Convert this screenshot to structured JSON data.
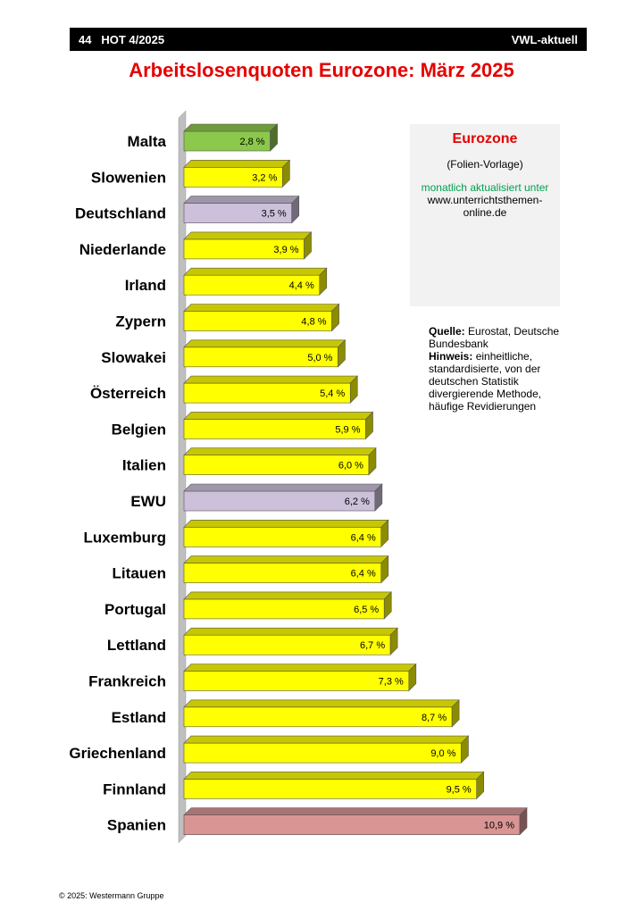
{
  "header": {
    "page_number": "44",
    "issue": "HOT 4/2025",
    "section": "VWL-aktuell"
  },
  "chart_data": {
    "type": "bar",
    "orientation": "horizontal",
    "title": "Arbeitslosenquoten Eurozone: März 2025",
    "categories": [
      "Malta",
      "Slowenien",
      "Deutschland",
      "Niederlande",
      "Irland",
      "Zypern",
      "Slowakei",
      "Österreich",
      "Belgien",
      "Italien",
      "EWU",
      "Luxemburg",
      "Litauen",
      "Portugal",
      "Lettland",
      "Frankreich",
      "Estland",
      "Griechenland",
      "Finnland",
      "Spanien"
    ],
    "values": [
      2.8,
      3.2,
      3.5,
      3.9,
      4.4,
      4.8,
      5.0,
      5.4,
      5.9,
      6.0,
      6.2,
      6.4,
      6.4,
      6.5,
      6.7,
      7.3,
      8.7,
      9.0,
      9.5,
      10.9
    ],
    "value_labels": [
      "2,8 %",
      "3,2 %",
      "3,5 %",
      "3,9 %",
      "4,4 %",
      "4,8 %",
      "5,0 %",
      "5,4 %",
      "5,9 %",
      "6,0 %",
      "6,2 %",
      "6,4 %",
      "6,4 %",
      "6,5 %",
      "6,7 %",
      "7,3 %",
      "8,7 %",
      "9,0 %",
      "9,5 %",
      "10,9 %"
    ],
    "unit": "%",
    "xlim": [
      0,
      10.9
    ],
    "grid": false,
    "colors": {
      "default": "#ffff00",
      "Malta": "#8cc84b",
      "Deutschland": "#ccc0da",
      "EWU": "#ccc0da",
      "Spanien": "#d99594"
    }
  },
  "info_box": {
    "title": "Eurozone",
    "subtitle": "(Folien-Vorlage)",
    "update_note": "monatlich aktualisiert unter",
    "url": "www.unterrichtsthemen-online.de"
  },
  "source": {
    "source_label": "Quelle:",
    "source_text": "Eurostat, Deutsche Bundesbank",
    "note_label": "Hinweis:",
    "note_text": "einheitliche, standardisierte, von der deutschen Statistik divergierende Methode, häufige Revidierungen"
  },
  "footer": {
    "copyright": "© 2025: Westermann Gruppe"
  }
}
